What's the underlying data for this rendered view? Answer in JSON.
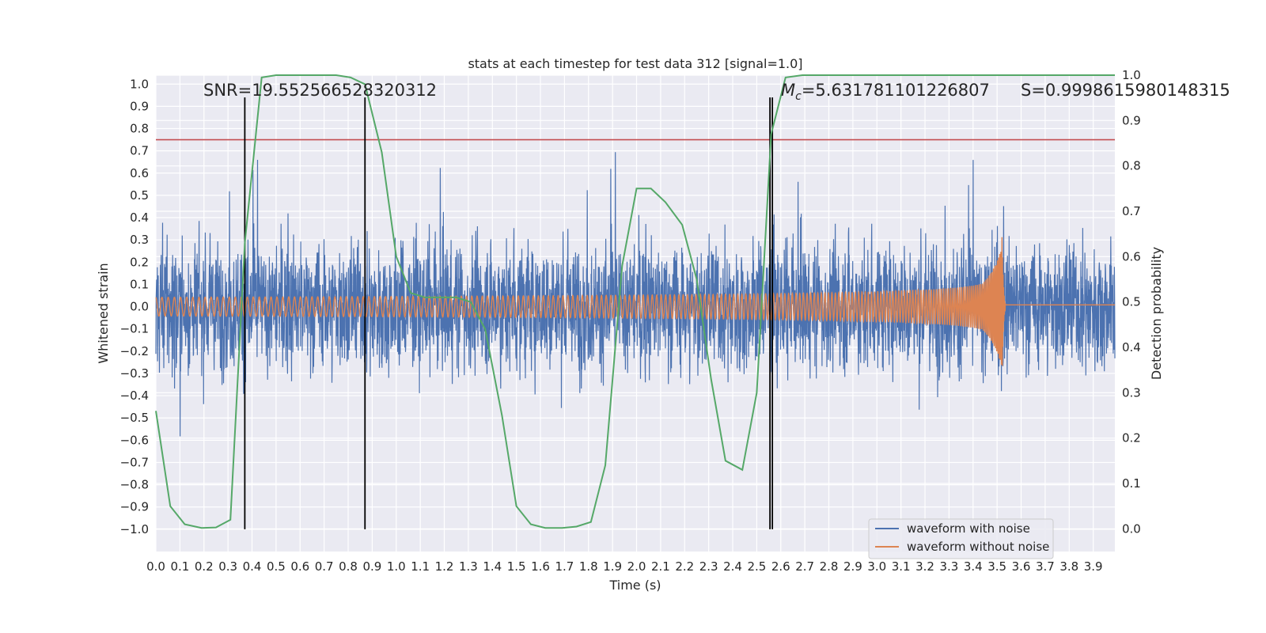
{
  "chart_data": {
    "type": "line",
    "title": "stats at each timestep for test data 312 [signal=1.0]",
    "xlabel": "Time (s)",
    "ylabel": "Whitened strain",
    "ylabel_right": "Detection probability",
    "xlim": [
      0.0,
      3.99
    ],
    "ylim": [
      -1.1,
      1.04
    ],
    "ylim_right": [
      -0.05,
      1.0
    ],
    "xticks": [
      "0.0",
      "0.1",
      "0.2",
      "0.3",
      "0.4",
      "0.5",
      "0.6",
      "0.7",
      "0.8",
      "0.9",
      "1.0",
      "1.1",
      "1.2",
      "1.3",
      "1.4",
      "1.5",
      "1.6",
      "1.7",
      "1.8",
      "1.9",
      "2.0",
      "2.1",
      "2.2",
      "2.3",
      "2.4",
      "2.5",
      "2.6",
      "2.7",
      "2.8",
      "2.9",
      "3.0",
      "3.1",
      "3.2",
      "3.3",
      "3.4",
      "3.5",
      "3.6",
      "3.7",
      "3.8",
      "3.9"
    ],
    "yticks": [
      "1.0",
      "0.9",
      "0.8",
      "0.7",
      "0.6",
      "0.5",
      "0.4",
      "0.3",
      "0.2",
      "0.1",
      "0.0",
      "-0.1",
      "-0.2",
      "-0.3",
      "-0.4",
      "-0.5",
      "-0.6",
      "-0.7",
      "-0.8",
      "-0.9",
      "-1.0"
    ],
    "yticks_right": [
      "1.0",
      "0.9",
      "0.8",
      "0.7",
      "0.6",
      "0.5",
      "0.4",
      "0.3",
      "0.2",
      "0.1",
      "0.0"
    ],
    "threshold": 0.75,
    "vlines": [
      0.37,
      0.87,
      2.555,
      2.565
    ],
    "merger_time": 3.52,
    "noise_amplitude": 0.28,
    "series": [
      {
        "name": "waveform with noise",
        "color": "#4c72b0"
      },
      {
        "name": "waveform without noise",
        "color": "#dd8452"
      },
      {
        "name": "Detection probability",
        "color": "#55a868",
        "axis": "right",
        "x": [
          0.0,
          0.06,
          0.12,
          0.19,
          0.25,
          0.31,
          0.37,
          0.44,
          0.5,
          0.56,
          0.62,
          0.69,
          0.75,
          0.81,
          0.87,
          0.94,
          1.0,
          1.06,
          1.12,
          1.19,
          1.25,
          1.31,
          1.37,
          1.44,
          1.5,
          1.56,
          1.62,
          1.69,
          1.75,
          1.81,
          1.87,
          1.94,
          2.0,
          2.06,
          2.12,
          2.19,
          2.25,
          2.31,
          2.37,
          2.44,
          2.5,
          2.56,
          2.62,
          2.69,
          2.75,
          2.81,
          2.87,
          2.94,
          3.0,
          3.5,
          3.99
        ],
        "values": [
          0.26,
          0.05,
          0.01,
          0.002,
          0.003,
          0.02,
          0.63,
          0.995,
          1.0,
          1.0,
          1.0,
          1.0,
          1.0,
          0.995,
          0.98,
          0.83,
          0.6,
          0.52,
          0.51,
          0.51,
          0.51,
          0.5,
          0.44,
          0.25,
          0.05,
          0.01,
          0.002,
          0.002,
          0.005,
          0.015,
          0.14,
          0.58,
          0.75,
          0.75,
          0.72,
          0.67,
          0.55,
          0.33,
          0.15,
          0.13,
          0.3,
          0.87,
          0.995,
          1.0,
          1.0,
          1.0,
          1.0,
          1.0,
          1.0,
          1.0,
          1.0
        ]
      }
    ],
    "annotations": {
      "snr": "SNR=19.552566528320312",
      "mc_symbol": "M",
      "mc_sub": "c",
      "mc_value": "=5.631781101226807",
      "s": "S=0.9998615980148315"
    },
    "legend_position": "lower-right",
    "colors": {
      "plot_bg": "#eaeaf2",
      "grid": "#ffffff",
      "threshold": "#c44e52",
      "vline": "#000000"
    }
  }
}
